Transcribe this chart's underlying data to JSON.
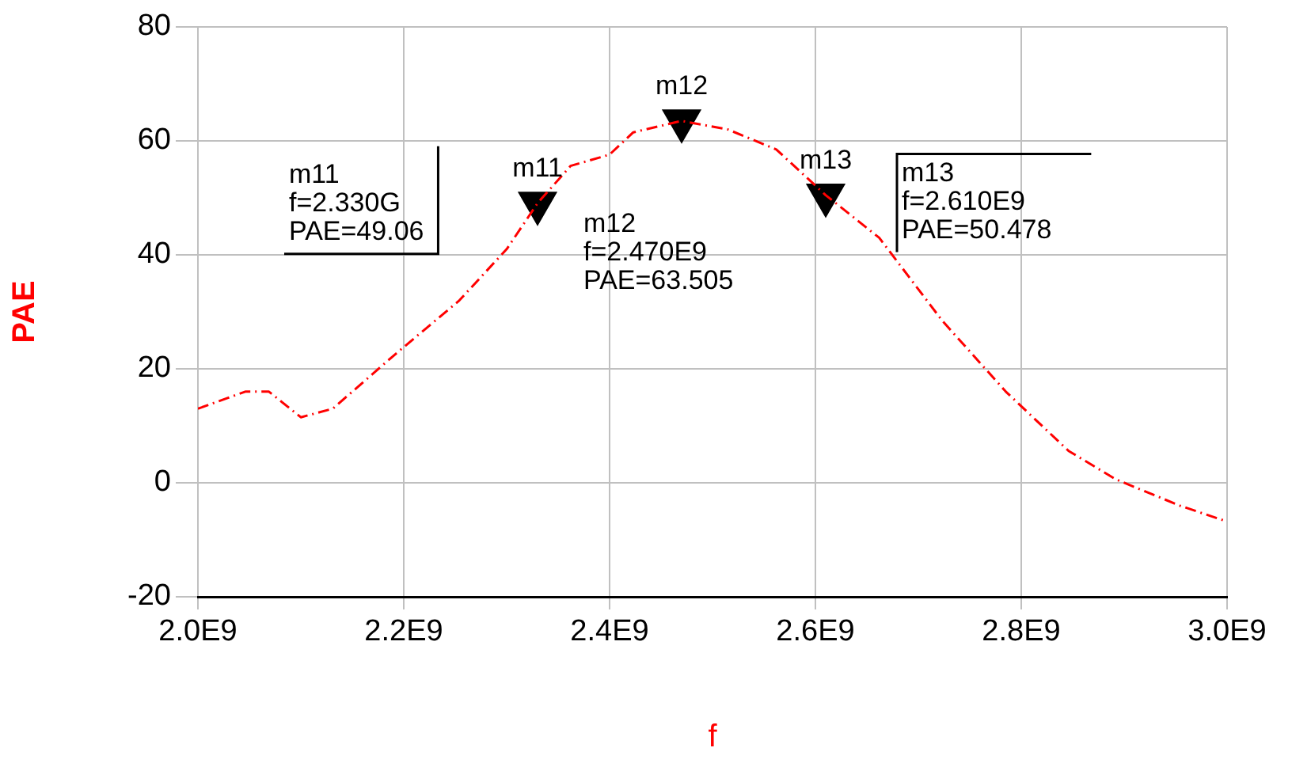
{
  "chart_data": {
    "type": "line",
    "xlabel": "f",
    "ylabel": "PAE",
    "x": [
      2000000000,
      2046000000,
      2069000000,
      2100000000,
      2131000000,
      2192000000,
      2254000000,
      2300000000,
      2330000000,
      2362000000,
      2400000000,
      2423000000,
      2470000000,
      2515000000,
      2562000000,
      2610000000,
      2662000000,
      2723000000,
      2785000000,
      2846000000,
      2892000000,
      2954000000,
      3000000000
    ],
    "series": [
      {
        "color": "#ff0000",
        "values": [
          13,
          16,
          16,
          11.5,
          13,
          22.6,
          32,
          41,
          49.06,
          55.6,
          57.6,
          61.5,
          63.505,
          62,
          58.5,
          50.478,
          43,
          28.5,
          16,
          5.6,
          0.6,
          -4,
          -6.8
        ]
      },
      {
        "type": "scatter",
        "color": "#000000",
        "marker": "triangle",
        "x": [
          2330000000,
          2470000000,
          2610000000
        ],
        "values": [
          49.06,
          63.505,
          50.478
        ]
      }
    ],
    "xlim": [
      2000000000,
      3000000000
    ],
    "xticks": [
      {
        "value": 2000000000,
        "label": "2.0E9"
      },
      {
        "value": 2200000000,
        "label": "2.2E9"
      },
      {
        "value": 2400000000,
        "label": "2.4E9"
      },
      {
        "value": 2600000000,
        "label": "2.6E9"
      },
      {
        "value": 2800000000,
        "label": "2.8E9"
      },
      {
        "value": 3000000000,
        "label": "3.0E9"
      }
    ],
    "ylim": [
      -20,
      80
    ],
    "yticks": [
      -20,
      0,
      20,
      40,
      60,
      80
    ],
    "grid": true,
    "legend": false,
    "marker": "none",
    "line_style": "dashed",
    "annotations": [
      {
        "text": "m11",
        "x": 2330000000,
        "y": 49.06
      },
      {
        "text": "m12",
        "x": 2470000000,
        "y": 63.505
      },
      {
        "text": "m13",
        "x": 2610000000,
        "y": 50.478
      },
      "m11\nf=2.330G\nPAE=49.06",
      "m12\nf=2.470E9\nPAE=63.505",
      "m13\nf=2.610E9\nPAE=50.478"
    ]
  }
}
